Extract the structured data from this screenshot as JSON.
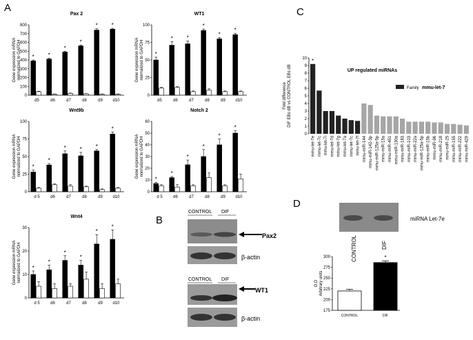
{
  "panel_labels": {
    "a": "A",
    "b": "B",
    "c": "C",
    "d": "D"
  },
  "blot_b": {
    "col_control": "CONTROL",
    "col_dif": "DIF",
    "pax2": "Pax2",
    "wt1": "WT1",
    "beta_actin": "β-actin"
  },
  "blot_d": {
    "label": "miRNA Let-7e",
    "col_control": "CONTROL",
    "col_dif": "DIF"
  },
  "chart_data": [
    {
      "type": "bar",
      "title": "Pax 2",
      "ylabel": "Gene expression mRNA\nnormalized to GAPDH",
      "categories": [
        "d5",
        "d6",
        "d7",
        "d8",
        "d9",
        "d10"
      ],
      "ylim": [
        0,
        800
      ],
      "yticks": [
        0,
        100,
        200,
        300,
        400,
        500,
        600,
        700,
        800
      ],
      "series": [
        {
          "values": [
            390,
            410,
            490,
            560,
            740,
            750
          ],
          "error": [
            10,
            10,
            10,
            10,
            15,
            10
          ],
          "color": "#000000"
        },
        {
          "values": [
            40,
            10,
            20,
            15,
            10,
            10
          ],
          "error": [
            5,
            3,
            4,
            3,
            3,
            3
          ],
          "color": "#ffffff"
        }
      ],
      "significant": [
        true,
        true,
        true,
        true,
        true,
        true
      ]
    },
    {
      "type": "bar",
      "title": "WT1",
      "ylabel": "Gene expression mRNA\nnormalized to GAPDH",
      "categories": [
        "d5",
        "d6",
        "d7",
        "d8",
        "d9",
        "d10"
      ],
      "ylim": [
        0,
        100
      ],
      "yticks": [
        0,
        25,
        50,
        75,
        100
      ],
      "series": [
        {
          "values": [
            50,
            71,
            73,
            92,
            80,
            86
          ],
          "error": [
            4,
            5,
            4,
            2,
            2,
            2
          ],
          "color": "#000000"
        },
        {
          "values": [
            10,
            11,
            5,
            7,
            5,
            5
          ],
          "error": [
            1,
            1,
            1,
            2,
            1,
            1
          ],
          "color": "#ffffff"
        }
      ],
      "significant": [
        true,
        true,
        true,
        true,
        true,
        true
      ]
    },
    {
      "type": "bar",
      "title": "Wnt9b",
      "ylabel": "Gene expression mRNA\nnormalized to GAPDH",
      "categories": [
        "d 5",
        "d6",
        "d7",
        "d8",
        "d9",
        "d10"
      ],
      "ylim": [
        0,
        100
      ],
      "yticks": [
        0,
        25,
        50,
        75,
        100
      ],
      "series": [
        {
          "values": [
            28,
            38,
            54,
            51,
            58,
            82
          ],
          "error": [
            3,
            2,
            4,
            5,
            2,
            3
          ],
          "color": "#000000"
        },
        {
          "values": [
            5,
            10,
            8,
            7,
            3,
            5
          ],
          "error": [
            1,
            1,
            2,
            1,
            1,
            1
          ],
          "color": "#ffffff"
        }
      ],
      "significant": [
        true,
        true,
        true,
        true,
        true,
        true
      ]
    },
    {
      "type": "bar",
      "title": "Notch 2",
      "ylabel": "Gene expression mRNA\nnormalized to GAPDH",
      "categories": [
        "d 5",
        "d6",
        "d7",
        "d8",
        "d9",
        "d10"
      ],
      "ylim": [
        0,
        60
      ],
      "yticks": [
        0,
        10,
        20,
        30,
        40,
        50,
        60
      ],
      "series": [
        {
          "values": [
            7,
            12,
            23,
            30,
            40,
            50
          ],
          "error": [
            1,
            1,
            4,
            6,
            5,
            2
          ],
          "color": "#000000"
        },
        {
          "values": [
            5,
            4,
            5,
            12,
            5,
            11
          ],
          "error": [
            1,
            2,
            1,
            4,
            1,
            4
          ],
          "color": "#ffffff"
        }
      ],
      "significant": [
        true,
        true,
        true,
        true,
        true,
        true
      ]
    },
    {
      "type": "bar",
      "title": "Wnt4",
      "ylabel": "Gene expression mRNA\nnormalized to GAPDH",
      "categories": [
        "d 5",
        "d6",
        "d7",
        "d8",
        "d9",
        "d10"
      ],
      "ylim": [
        0,
        30
      ],
      "yticks": [
        0,
        10,
        20,
        30
      ],
      "series": [
        {
          "values": [
            10,
            12,
            16,
            14,
            23,
            25
          ],
          "error": [
            1.5,
            2,
            2,
            2,
            4,
            4
          ],
          "color": "#000000"
        },
        {
          "values": [
            5,
            4,
            5,
            8,
            4,
            6
          ],
          "error": [
            2,
            2,
            1,
            3,
            2,
            2
          ],
          "color": "#ffffff"
        }
      ],
      "significant": [
        true,
        true,
        true,
        true,
        true,
        true
      ]
    },
    {
      "type": "bar",
      "title": "UP regulated miRNAs",
      "ylabel": "Fold difference\nDIF EBs dB vs CONTROL EBs dB",
      "ylim": [
        0,
        10
      ],
      "yticks": [
        0,
        1,
        2,
        3,
        4,
        5,
        6,
        7,
        8,
        9,
        10
      ],
      "legend": {
        "label_prefix": "Family",
        "label_name": "mmu-let-7",
        "color": "#222222",
        "position": "top-right"
      },
      "categories": [
        "mmu-let-7e",
        "mmu-let-7c",
        "mmu-let-7i",
        "mmu-let-7d",
        "mmu-let-7g",
        "mmu-let-7a",
        "mmu-let-7c",
        "mmu-let-7f",
        "mmu-miR-144",
        "mmu-miR-142-3p",
        "mmu-miR-125a-5p",
        "mmu-miR-15a",
        "mmu-miR-451",
        "mmu-miR-130a",
        "mmu-miR-183",
        "mmu-miR-103",
        "mmu-miR-22a",
        "mmu-miR-125a-5p",
        "mmu-miR-15b",
        "mmu-miR-96",
        "mmu-miR-218",
        "mmu-miR-25",
        "mmu-miR-155",
        "mmu-miR-222",
        "mmu-miR-429"
      ],
      "values": [
        9.2,
        5.7,
        3.0,
        3.0,
        2.4,
        2.0,
        1.8,
        1.7,
        4.0,
        3.8,
        2.4,
        2.3,
        2.3,
        2.3,
        2.0,
        1.6,
        1.6,
        1.6,
        1.6,
        1.5,
        1.5,
        1.3,
        1.3,
        1.2,
        1.1
      ],
      "family": [
        true,
        true,
        true,
        true,
        true,
        true,
        true,
        true,
        false,
        false,
        false,
        false,
        false,
        false,
        false,
        false,
        false,
        false,
        false,
        false,
        false,
        false,
        false,
        false,
        false
      ],
      "significant": [
        true,
        false,
        false,
        false,
        false,
        false,
        false,
        false,
        false,
        false,
        false,
        false,
        false,
        false,
        false,
        false,
        false,
        false,
        false,
        false,
        false,
        false,
        false,
        false,
        false
      ]
    },
    {
      "type": "bar",
      "title": "",
      "ylabel": "O.D\nArbitrary units",
      "categories": [
        "CONTROL",
        "DIF"
      ],
      "ylim": [
        175,
        300
      ],
      "yticks": [
        175,
        200,
        225,
        250,
        275,
        300
      ],
      "values": [
        220,
        286
      ],
      "error": [
        4,
        4
      ],
      "colors": [
        "#ffffff",
        "#000000"
      ],
      "significant": [
        false,
        true
      ]
    }
  ]
}
